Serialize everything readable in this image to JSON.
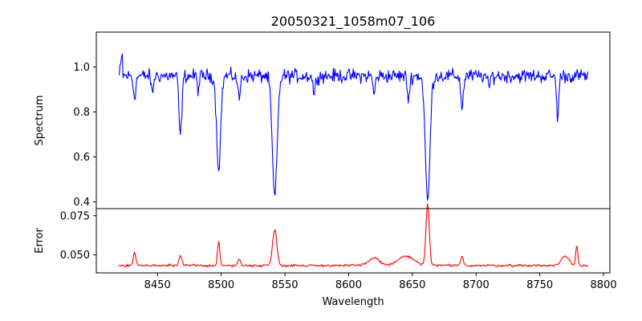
{
  "chart_data": [
    {
      "panel": "top",
      "type": "line",
      "title": "20050321_1058m07_106",
      "ylabel": "Spectrum",
      "xlim": [
        8402,
        8805
      ],
      "ylim": [
        0.37,
        1.155
      ],
      "yticks": [
        0.4,
        0.6,
        0.8,
        1.0
      ],
      "ytick_labels": [
        "0.4",
        "0.6",
        "0.8",
        "1.0"
      ],
      "color": "#0000ff",
      "x_range": [
        8420,
        8788
      ],
      "baseline": 0.96,
      "noise": 0.045,
      "features": [
        {
          "x": 8432,
          "depth": 0.09,
          "width": 1.0
        },
        {
          "x": 8446,
          "depth": 0.08,
          "width": 0.8
        },
        {
          "x": 8468,
          "depth": 0.27,
          "width": 1.1
        },
        {
          "x": 8482,
          "depth": 0.06,
          "width": 0.8
        },
        {
          "x": 8498,
          "depth": 0.41,
          "width": 1.6
        },
        {
          "x": 8514,
          "depth": 0.1,
          "width": 1.0
        },
        {
          "x": 8542,
          "depth": 0.54,
          "width": 1.9
        },
        {
          "x": 8573,
          "depth": 0.08,
          "width": 0.9
        },
        {
          "x": 8620,
          "depth": 0.08,
          "width": 0.9
        },
        {
          "x": 8647,
          "depth": 0.1,
          "width": 1.0
        },
        {
          "x": 8662,
          "depth": 0.56,
          "width": 1.8
        },
        {
          "x": 8689,
          "depth": 0.14,
          "width": 1.0
        },
        {
          "x": 8710,
          "depth": 0.06,
          "width": 0.8
        },
        {
          "x": 8764,
          "depth": 0.18,
          "width": 0.9
        }
      ]
    },
    {
      "panel": "bottom",
      "type": "line",
      "xlabel": "Wavelength",
      "ylabel": "Error",
      "xlim": [
        8402,
        8805
      ],
      "ylim": [
        0.0385,
        0.0795
      ],
      "xticks": [
        8450,
        8500,
        8550,
        8600,
        8650,
        8700,
        8750,
        8800
      ],
      "xtick_labels": [
        "8450",
        "8500",
        "8550",
        "8600",
        "8650",
        "8700",
        "8750",
        "8800"
      ],
      "yticks": [
        0.05,
        0.075
      ],
      "ytick_labels": [
        "0.050",
        "0.075"
      ],
      "color": "#ff0000",
      "x_range": [
        8420,
        8788
      ],
      "baseline": 0.0432,
      "noise": 0.0012,
      "features": [
        {
          "x": 8432,
          "height": 0.0085,
          "width": 1.0
        },
        {
          "x": 8468,
          "height": 0.006,
          "width": 1.1
        },
        {
          "x": 8498,
          "height": 0.015,
          "width": 0.9
        },
        {
          "x": 8514,
          "height": 0.004,
          "width": 1.0
        },
        {
          "x": 8542,
          "height": 0.023,
          "width": 1.7
        },
        {
          "x": 8620,
          "height": 0.005,
          "width": 4.0
        },
        {
          "x": 8645,
          "height": 0.006,
          "width": 6.0
        },
        {
          "x": 8662,
          "height": 0.039,
          "width": 1.3
        },
        {
          "x": 8689,
          "height": 0.006,
          "width": 1.0
        },
        {
          "x": 8770,
          "height": 0.006,
          "width": 3.0
        },
        {
          "x": 8779,
          "height": 0.013,
          "width": 0.8
        }
      ]
    }
  ]
}
